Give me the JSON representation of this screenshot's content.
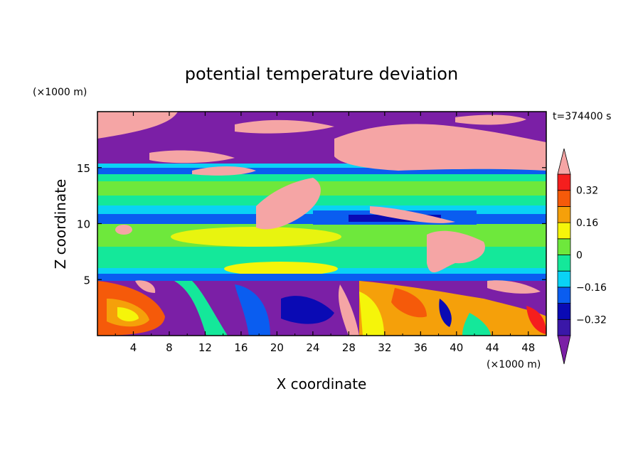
{
  "chart_data": {
    "type": "heatmap",
    "title": "potential temperature deviation",
    "xlabel": "X coordinate",
    "ylabel": "Z coordinate",
    "x_unit": "(×1000 m)",
    "y_unit": "(×1000 m)",
    "time_label": "t=374400 s",
    "xlim": [
      0,
      50
    ],
    "ylim": [
      0,
      20
    ],
    "xticks": [
      4,
      8,
      12,
      16,
      20,
      24,
      28,
      32,
      36,
      40,
      44,
      48
    ],
    "yticks": [
      5,
      10,
      15
    ],
    "colorbar": {
      "levels": [
        -0.4,
        -0.32,
        -0.24,
        -0.16,
        -0.08,
        0,
        0.08,
        0.16,
        0.24,
        0.32,
        0.4
      ],
      "tick_labels": [
        "0.32",
        "0.16",
        "0",
        "−0.16",
        "−0.32"
      ],
      "tick_values": [
        0.32,
        0.16,
        0,
        -0.16,
        -0.32
      ],
      "colors": [
        "#7b1fa6",
        "#3a17a8",
        "#0a0ab4",
        "#0a5df0",
        "#0ad2f5",
        "#14e89a",
        "#6ee83c",
        "#f5f50a",
        "#f5a00a",
        "#f55a0a",
        "#f51e1e",
        "#f5a5a5"
      ]
    }
  }
}
